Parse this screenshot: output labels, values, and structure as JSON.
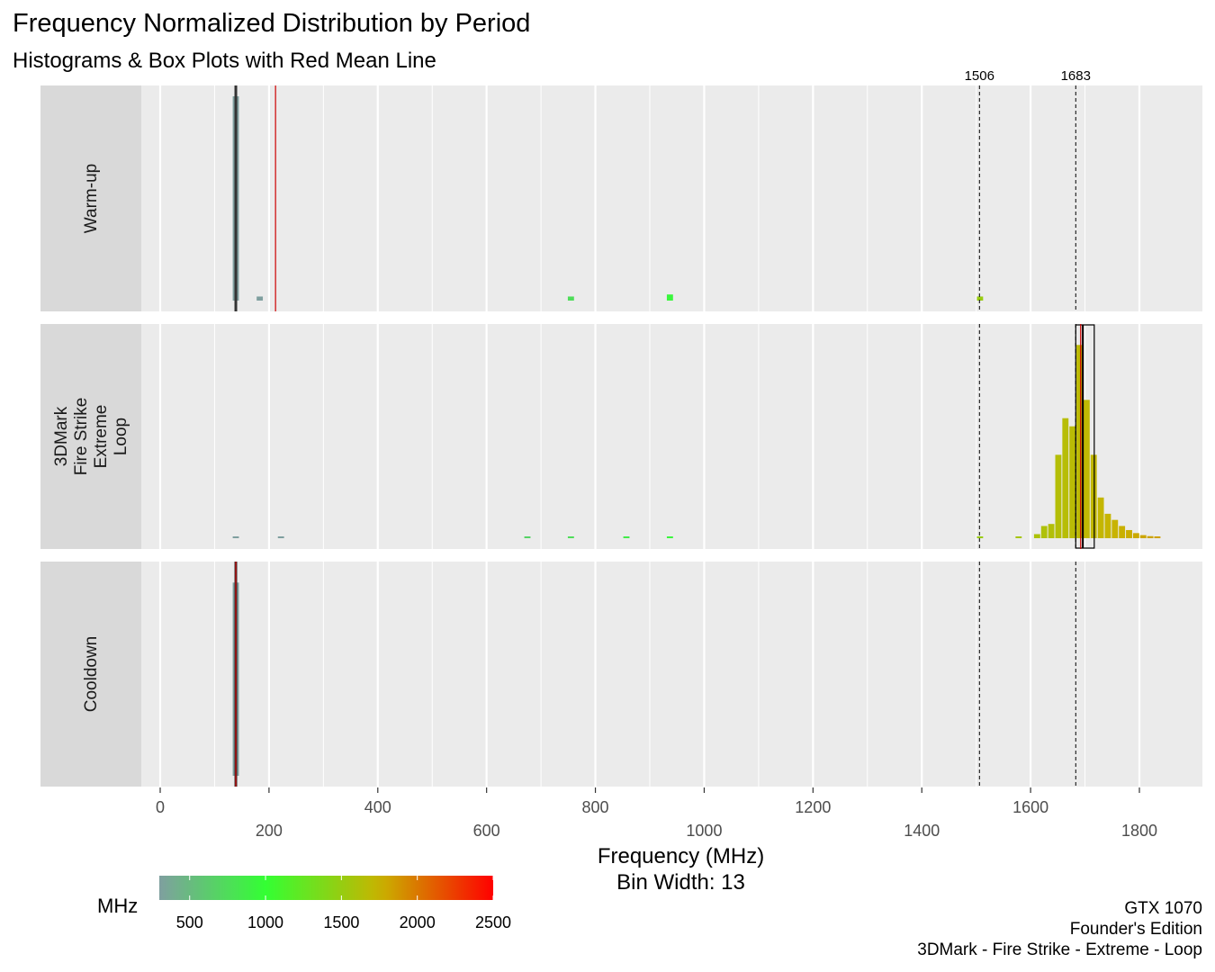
{
  "title": "Frequency Normalized Distribution by Period",
  "subtitle": "Histograms & Box Plots with Red Mean Line",
  "caption": [
    "GTX 1070",
    "Founder's Edition",
    "3DMark - Fire Strike - Extreme - Loop"
  ],
  "colors": {
    "panel_bg": "#ebebeb",
    "strip_bg": "#d9d9d9",
    "grid": "#ffffff",
    "mean_line": "#cc0000",
    "gradient": [
      "#7f9f9f",
      "#33ff33",
      "#c8b400",
      "#ff0000"
    ]
  },
  "chart_data": {
    "type": "histogram",
    "xlabel": "Frequency (MHz)",
    "xlabel_line2": "Bin Width: 13",
    "bin_width": 13,
    "xlim": [
      -20,
      1880
    ],
    "x_ticks_upper": [
      "0",
      "400",
      "800",
      "1200",
      "1600"
    ],
    "x_ticks_lower": [
      "200",
      "600",
      "1000",
      "1400",
      "1800"
    ],
    "x_tick_values_upper": [
      0,
      400,
      800,
      1200,
      1600
    ],
    "x_tick_values_lower": [
      200,
      600,
      1000,
      1400,
      1800
    ],
    "reference_lines": [
      {
        "label": "1506",
        "value": 1506
      },
      {
        "label": "1683",
        "value": 1683
      }
    ],
    "panels": [
      {
        "label": "Warm-up",
        "bins": [
          [
            139,
            1.0
          ],
          [
            183,
            0.02
          ],
          [
            755,
            0.02
          ],
          [
            937,
            0.03
          ],
          [
            1507,
            0.02
          ]
        ],
        "box": {
          "q1": 139,
          "median": 139,
          "q3": 139
        },
        "mean": 212
      },
      {
        "label": "3DMark Fire Strike Extreme Loop",
        "bins": [
          [
            139,
            0.005
          ],
          [
            222,
            0.005
          ],
          [
            675,
            0.004
          ],
          [
            755,
            0.004
          ],
          [
            857,
            0.004
          ],
          [
            937,
            0.008
          ],
          [
            1507,
            0.003
          ],
          [
            1578,
            0.004
          ],
          [
            1612,
            0.02
          ],
          [
            1625,
            0.06
          ],
          [
            1638,
            0.07
          ],
          [
            1651,
            0.41
          ],
          [
            1664,
            0.59
          ],
          [
            1677,
            0.55
          ],
          [
            1690,
            0.95
          ],
          [
            1703,
            0.68
          ],
          [
            1716,
            0.41
          ],
          [
            1729,
            0.2
          ],
          [
            1742,
            0.12
          ],
          [
            1755,
            0.09
          ],
          [
            1768,
            0.06
          ],
          [
            1781,
            0.04
          ],
          [
            1794,
            0.025
          ],
          [
            1807,
            0.015
          ],
          [
            1820,
            0.01
          ],
          [
            1833,
            0.005
          ]
        ],
        "box": {
          "q1": 1683,
          "median": 1696,
          "q3": 1717
        },
        "mean": 1692
      },
      {
        "label": "Cooldown",
        "bins": [
          [
            139,
            0.95
          ]
        ],
        "box": {
          "q1": 139,
          "median": 139,
          "q3": 139
        },
        "mean": 139
      }
    ],
    "legend": {
      "title": "MHz",
      "position": "bottom-left",
      "range": [
        300,
        2500
      ],
      "ticks": [
        "500",
        "1000",
        "1500",
        "2000",
        "2500"
      ],
      "tick_values": [
        500,
        1000,
        1500,
        2000,
        2500
      ]
    }
  }
}
